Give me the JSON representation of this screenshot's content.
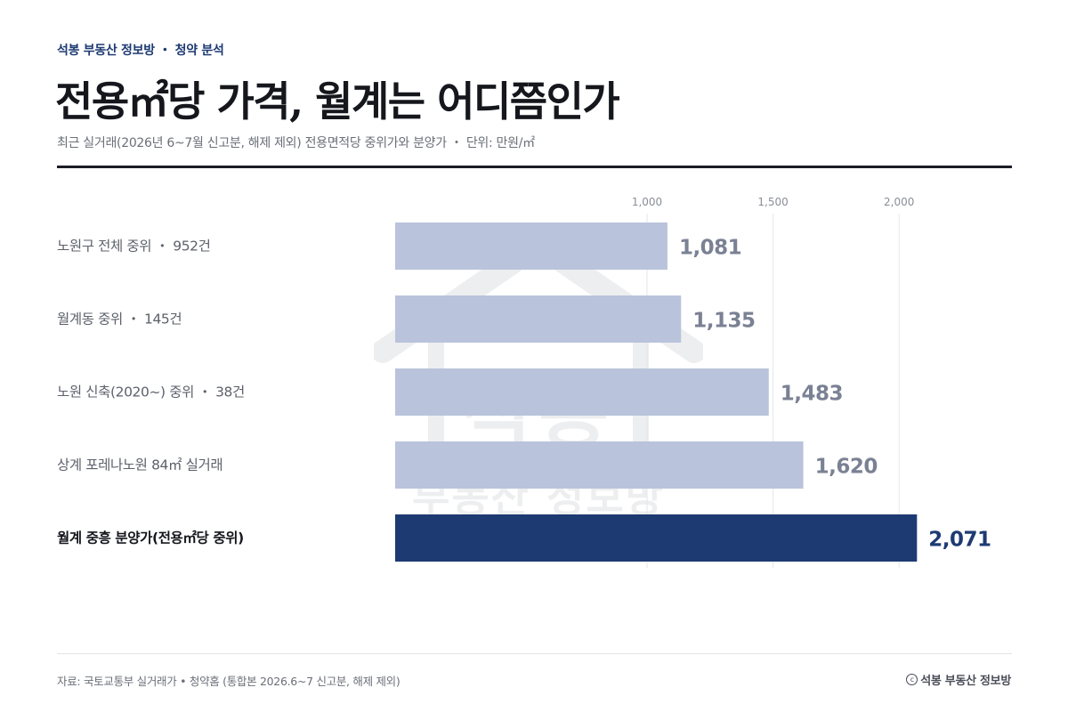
{
  "header": {
    "kicker": "석봉 부동산 정보방 ・ 청약 분석",
    "title": "전용㎡당 가격, 월계는 어디쯤인가",
    "subtitle": "최근 실거래(2026년 6~7월 신고분, 해제 제외) 전용면적당 중위가와 분양가 ・ 단위: 만원/㎡"
  },
  "watermark": {
    "main": "석봉",
    "sub": "부동산 정보방"
  },
  "colors": {
    "muted_bar": "#b9c3db",
    "highlight_bar": "#1d3a72",
    "muted_value": "#7b8194",
    "highlight_value": "#1d3a72",
    "grid": "#e4e6ea"
  },
  "chart_data": {
    "type": "bar",
    "orientation": "horizontal",
    "title": "전용㎡당 가격, 월계는 어디쯤인가",
    "unit": "만원/㎡",
    "categories": [
      "노원구 전체 중위 ・ 952건",
      "월계동 중위 ・ 145건",
      "노원 신축(2020~) 중위 ・ 38건",
      "상계 포레나노원 84㎡ 실거래",
      "월계 중흥 분양가(전용㎡당 중위)"
    ],
    "values": [
      1081,
      1135,
      1483,
      1620,
      2071
    ],
    "value_labels": [
      "1,081",
      "1,135",
      "1,483",
      "1,620",
      "2,071"
    ],
    "highlight_index": 4,
    "x_ticks": [
      1000,
      1500,
      2000
    ],
    "x_tick_labels": [
      "1,000",
      "1,500",
      "2,000"
    ],
    "xlim": [
      0,
      2400
    ],
    "grid": true,
    "legend": "none"
  },
  "footer": {
    "source": "자료: 국토교통부 실거래가 • 청약홈 (통합본 2026.6~7 신고분, 해제 제외)",
    "credit_symbol": "c",
    "credit": "석봉 부동산 정보방"
  }
}
